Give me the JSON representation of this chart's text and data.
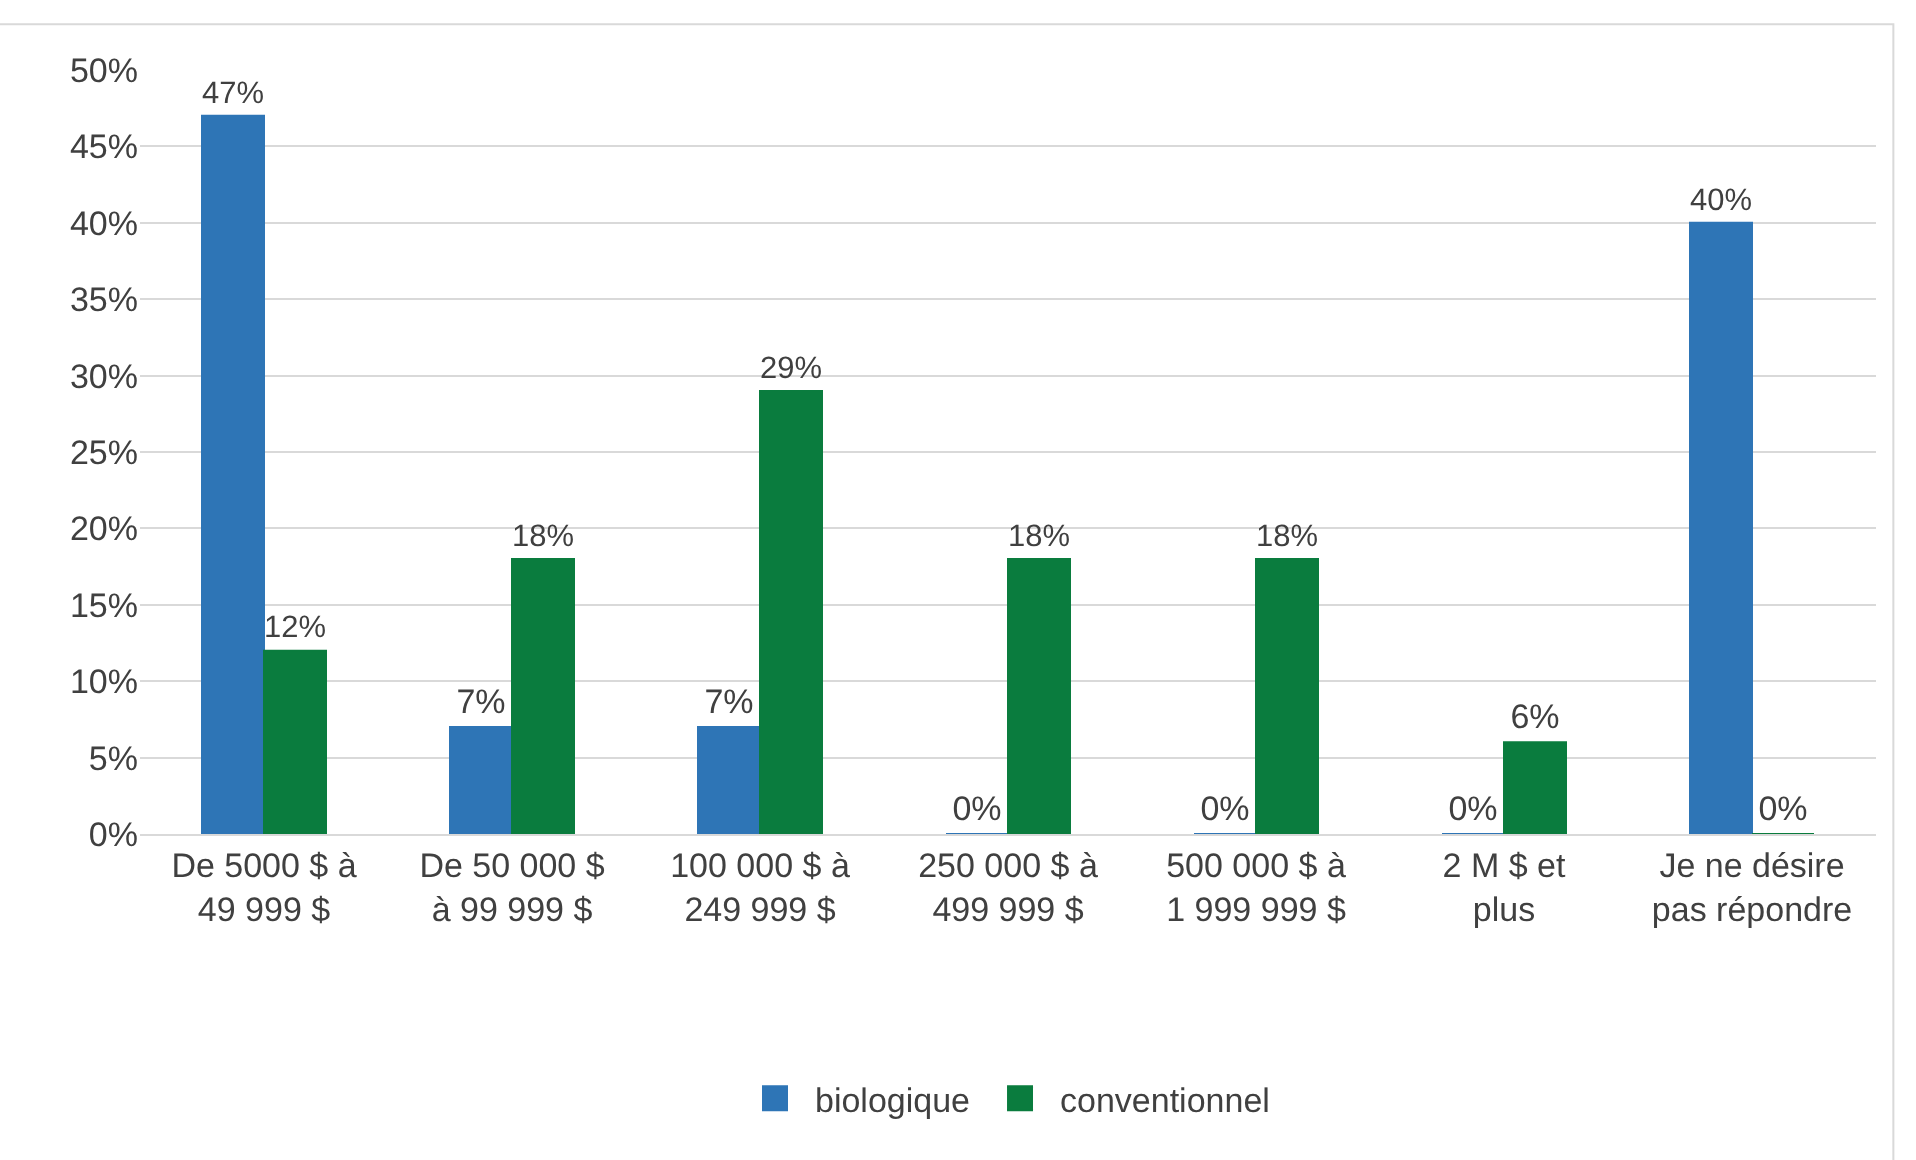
{
  "chart_data": {
    "type": "bar",
    "categories": [
      "De 5000 $ à 49 999 $",
      "De 50 000 $ à 99 999 $",
      "100 000 $ à 249 999 $",
      "250 000 $ à 499 999 $",
      "500 000 $ à 1 999 999 $",
      "2 M $ et plus",
      "Je ne désire pas répondre"
    ],
    "series": [
      {
        "name": "biologique",
        "color": "#2e75b6",
        "values": [
          47,
          7,
          7,
          0,
          0,
          0,
          40
        ],
        "value_labels": [
          "47%",
          "7%",
          "7%",
          "0%",
          "0%",
          "0%",
          "40%"
        ]
      },
      {
        "name": "conventionnel",
        "color": "#0a7c3e",
        "values": [
          12,
          18,
          29,
          18,
          18,
          6,
          0
        ],
        "value_labels": [
          "12%",
          "18%",
          "29%",
          "18%",
          "18%",
          "6%",
          "0%"
        ]
      }
    ],
    "ylim": [
      0,
      50
    ],
    "yticks": [
      {
        "value": 0,
        "label": "0%"
      },
      {
        "value": 5,
        "label": "5%"
      },
      {
        "value": 10,
        "label": "10%"
      },
      {
        "value": 15,
        "label": "15%"
      },
      {
        "value": 20,
        "label": "20%"
      },
      {
        "value": 25,
        "label": "25%"
      },
      {
        "value": 30,
        "label": "30%"
      },
      {
        "value": 35,
        "label": "35%"
      },
      {
        "value": 40,
        "label": "40%"
      },
      {
        "value": 45,
        "label": "45%"
      },
      {
        "value": 50,
        "label": "50%"
      }
    ],
    "grid": "y",
    "legend": "bottom"
  }
}
